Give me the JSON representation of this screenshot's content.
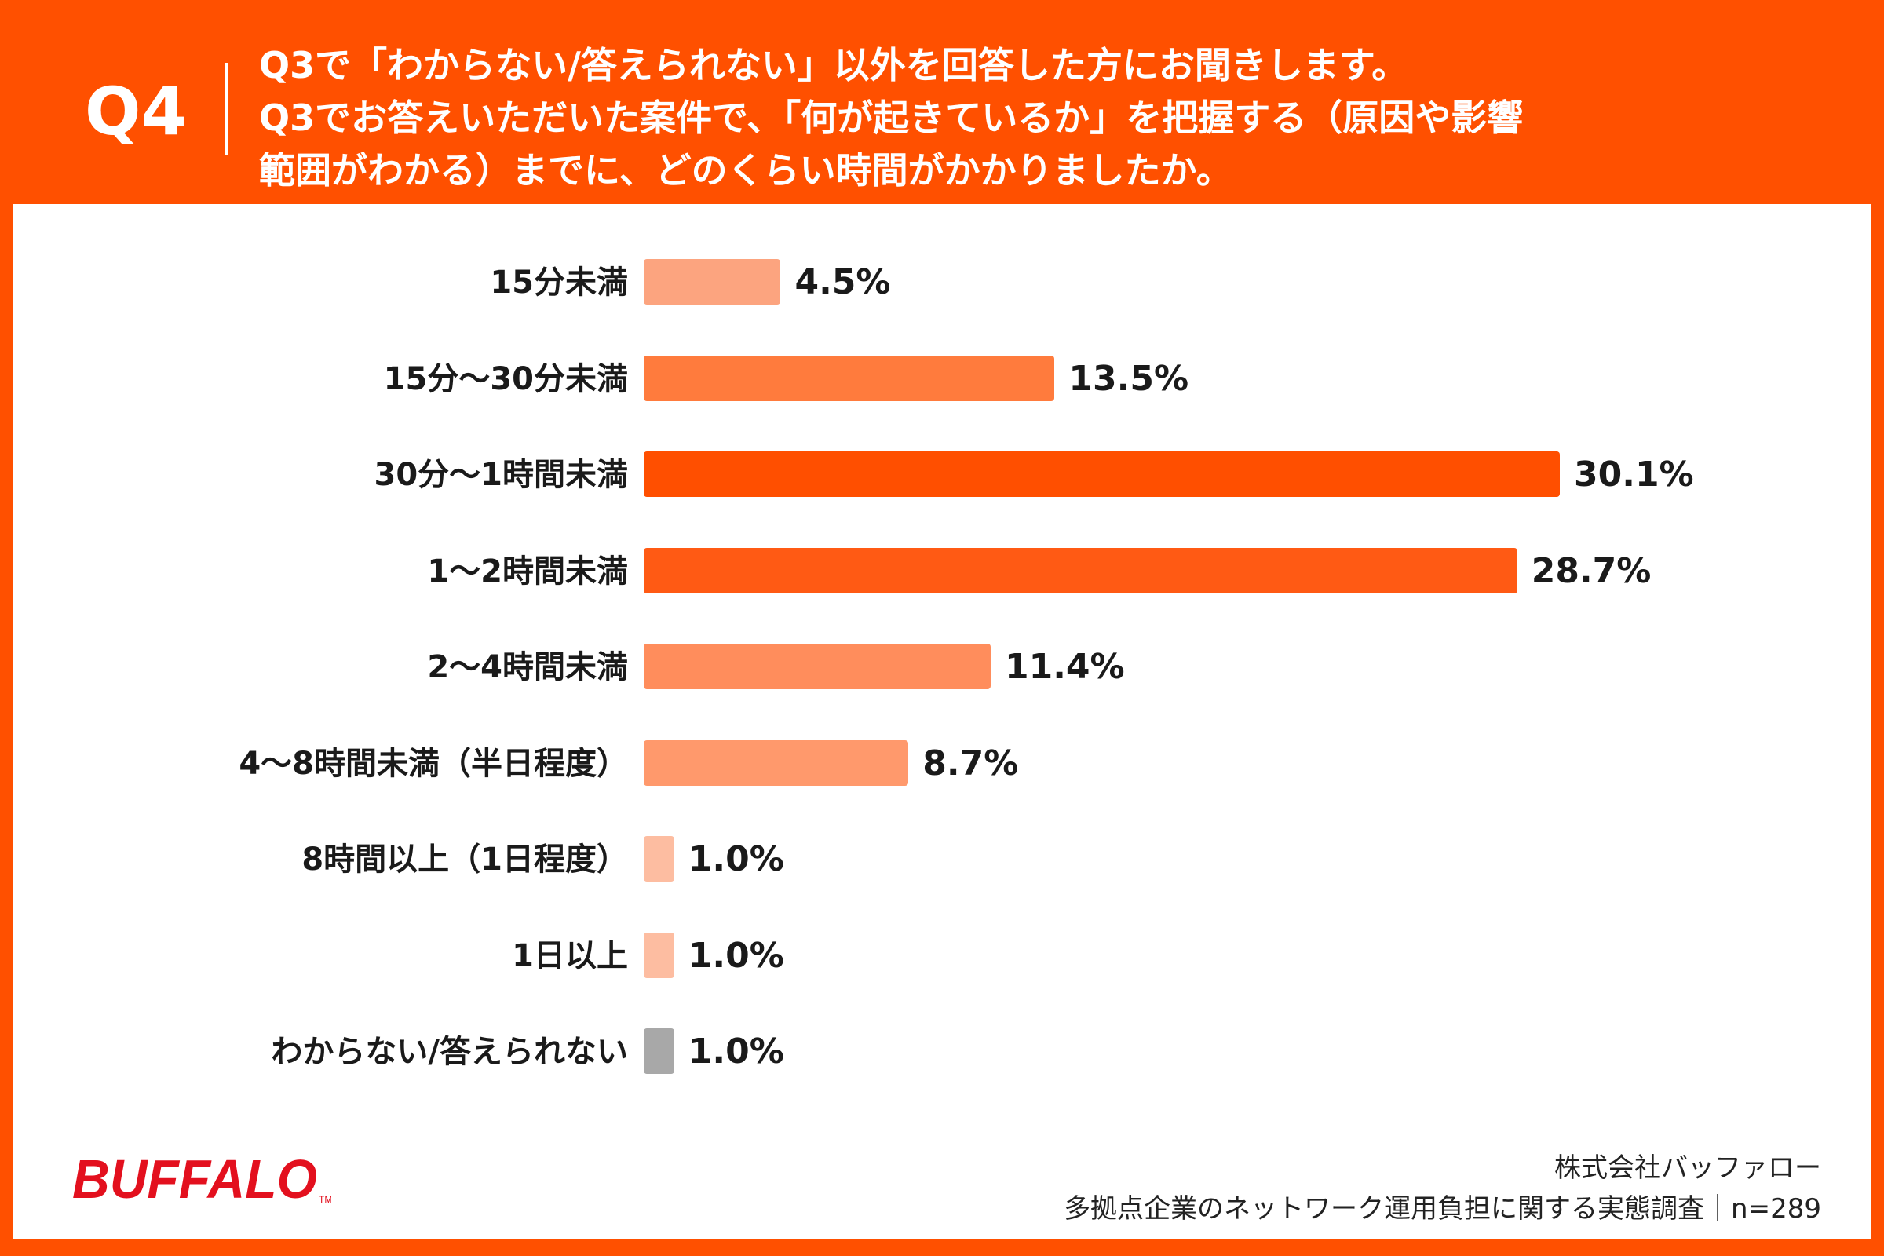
{
  "header": {
    "question_number": "Q4",
    "question_lines": [
      "Q3で「わからない/答えられない」以外を回答した方にお聞きします。",
      "Q3でお答えいただいた案件で、「何が起きているか」を把握する（原因や影響",
      "範囲がわかる）までに、どのくらい時間がかかりましたか。"
    ]
  },
  "chart_data": {
    "type": "bar",
    "orientation": "horizontal",
    "categories": [
      "15分未満",
      "15分〜30分未満",
      "30分〜1時間未満",
      "1〜2時間未満",
      "2〜4時間未満",
      "4〜8時間未満（半日程度）",
      "8時間以上（1日程度）",
      "1日以上",
      "わからない/答えられない"
    ],
    "values": [
      4.5,
      13.5,
      30.1,
      28.7,
      11.4,
      8.7,
      1.0,
      1.0,
      1.0
    ],
    "value_labels": [
      "4.5%",
      "13.5%",
      "30.1%",
      "28.7%",
      "11.4%",
      "8.7%",
      "1.0%",
      "1.0%",
      "1.0%"
    ],
    "bar_colors": [
      "#FCA47F",
      "#FF7B3D",
      "#FF4F00",
      "#FF5A14",
      "#FF8D5C",
      "#FF996C",
      "#FDBDA1",
      "#FDBDA1",
      "#A8A8A8"
    ],
    "xlim": [
      0,
      30.1
    ]
  },
  "footer": {
    "company": "株式会社バッファロー",
    "survey": "多拠点企業のネットワーク運用負担に関する実態調査｜n=289"
  },
  "logo": {
    "text": "BUFFALO",
    "mark": "TM",
    "color": "#E3101E"
  }
}
